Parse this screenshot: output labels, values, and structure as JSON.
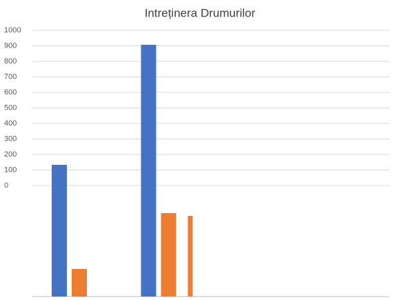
{
  "chart_data": {
    "type": "bar",
    "title": "Intreținera Drumurilor",
    "categories": [
      null,
      null,
      null,
      null
    ],
    "series": [
      {
        "color": "#4472c4",
        "values": [
          133,
          907,
          null,
          null
        ]
      },
      {
        "color": "#ed7d31",
        "values": [
          -538,
          -178,
          null,
          null
        ]
      },
      {
        "color": "#ed7d31",
        "values": [
          null,
          -196,
          null,
          null
        ]
      }
    ],
    "ylim": [
      -716,
      1000
    ],
    "yticks": [
      0,
      100,
      200,
      300,
      400,
      500,
      600,
      700,
      800,
      900,
      1000
    ],
    "grid": true
  }
}
